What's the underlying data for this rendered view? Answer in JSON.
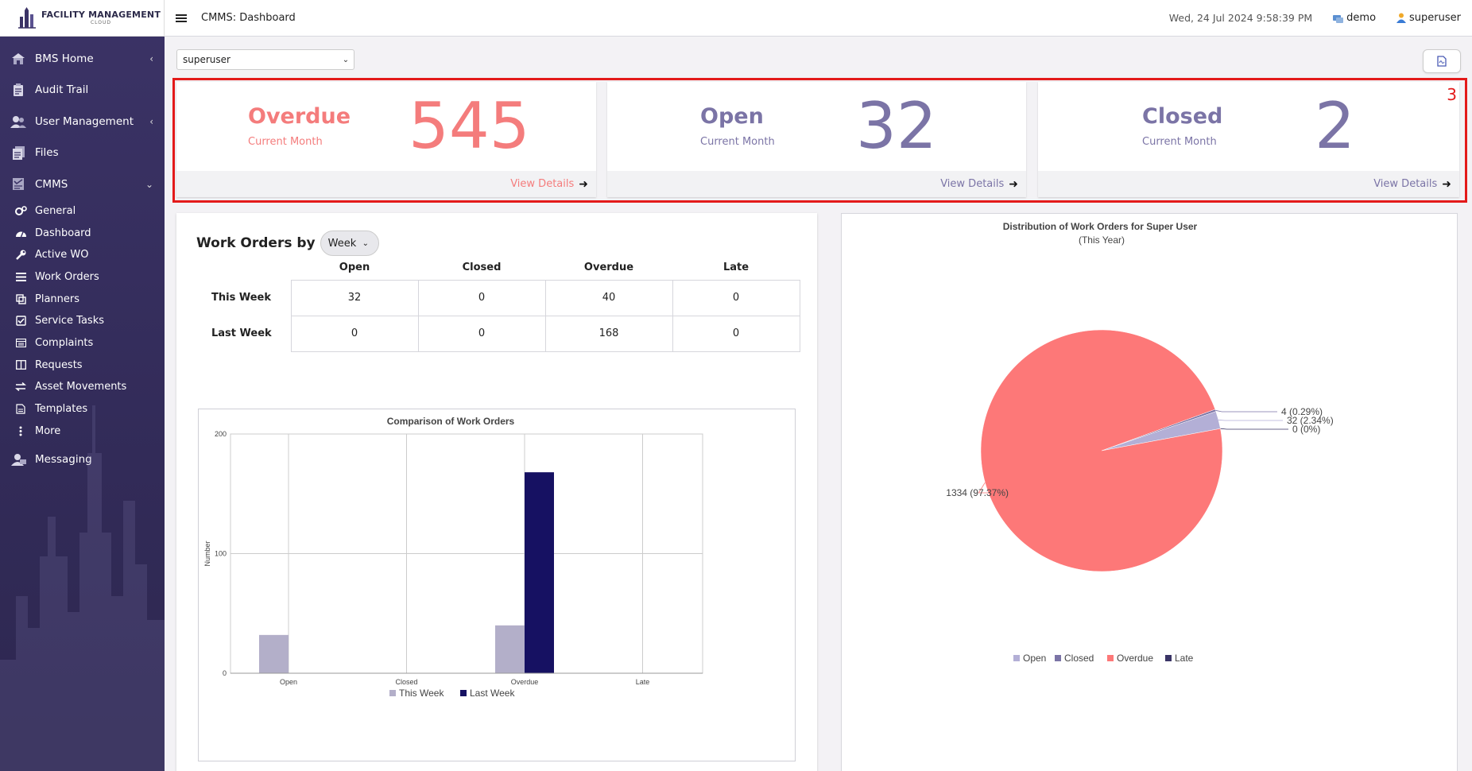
{
  "brand": {
    "line1": "FACILITY MANAGEMENT",
    "line2": "CLOUD"
  },
  "header": {
    "title": "CMMS: Dashboard",
    "datetime": "Wed, 24 Jul 2024 9:58:39 PM",
    "site": "demo",
    "user": "superuser"
  },
  "sidebar": {
    "items": [
      {
        "label": "BMS Home",
        "icon": "home-icon",
        "chevron": "‹"
      },
      {
        "label": "Audit Trail",
        "icon": "audit-icon"
      },
      {
        "label": "User Management",
        "icon": "users-icon",
        "chevron": "‹"
      },
      {
        "label": "Files",
        "icon": "files-icon"
      },
      {
        "label": "CMMS",
        "icon": "cmms-icon",
        "chevron": "⌄"
      }
    ],
    "cmms_sub": [
      {
        "label": "General",
        "icon": "cogs-icon"
      },
      {
        "label": "Dashboard",
        "icon": "dashboard-icon"
      },
      {
        "label": "Active WO",
        "icon": "wrench-icon"
      },
      {
        "label": "Work Orders",
        "icon": "list-icon"
      },
      {
        "label": "Planners",
        "icon": "planner-icon"
      },
      {
        "label": "Service Tasks",
        "icon": "check-square-icon"
      },
      {
        "label": "Complaints",
        "icon": "complaint-icon"
      },
      {
        "label": "Requests",
        "icon": "columns-icon"
      },
      {
        "label": "Asset Movements",
        "icon": "exchange-icon"
      },
      {
        "label": "Templates",
        "icon": "template-icon"
      },
      {
        "label": "More",
        "icon": "more-vertical-icon"
      }
    ],
    "messaging": {
      "label": "Messaging",
      "icon": "messaging-icon"
    }
  },
  "filter": {
    "user": "superuser"
  },
  "annotation": {
    "label": "3"
  },
  "stats": [
    {
      "name": "Overdue",
      "sub": "Current Month",
      "value": "545",
      "link": "View Details",
      "color": "#f47c7c"
    },
    {
      "name": "Open",
      "sub": "Current Month",
      "value": "32",
      "link": "View Details",
      "color": "#7b74a6"
    },
    {
      "name": "Closed",
      "sub": "Current Month",
      "value": "2",
      "link": "View Details",
      "color": "#7b74a6"
    }
  ],
  "work_orders": {
    "title": "Work Orders by",
    "period": "Week",
    "columns": [
      "Open",
      "Closed",
      "Overdue",
      "Late"
    ],
    "rows": [
      {
        "label": "This Week",
        "values": [
          "32",
          "0",
          "40",
          "0"
        ]
      },
      {
        "label": "Last Week",
        "values": [
          "0",
          "0",
          "168",
          "0"
        ]
      }
    ]
  },
  "chart_data": [
    {
      "type": "bar",
      "title": "Comparison of Work Orders",
      "categories": [
        "Open",
        "Closed",
        "Overdue",
        "Late"
      ],
      "series": [
        {
          "name": "This Week",
          "values": [
            32,
            0,
            40,
            0
          ],
          "color": "#b3afc9"
        },
        {
          "name": "Last Week",
          "values": [
            0,
            0,
            168,
            0
          ],
          "color": "#161162"
        }
      ],
      "ylabel": "Number",
      "ylim": [
        0,
        200
      ],
      "yticks": [
        0,
        100,
        200
      ],
      "grid": true,
      "legend": "bottom"
    },
    {
      "type": "pie",
      "title": "Distribution of Work Orders for Super User",
      "subtitle": "(This Year)",
      "slices": [
        {
          "name": "Open",
          "value": 32,
          "label": "32 (2.34%)",
          "color": "#b3afd6"
        },
        {
          "name": "Closed",
          "value": 4,
          "label": "4 (0.29%)",
          "color": "#7b74a6"
        },
        {
          "name": "Overdue",
          "value": 1334,
          "label": "1334 (97.37%)",
          "color": "#fd7878"
        },
        {
          "name": "Late",
          "value": 0,
          "label": "0 (0%)",
          "color": "#3a3466"
        }
      ],
      "legend": "bottom"
    }
  ]
}
